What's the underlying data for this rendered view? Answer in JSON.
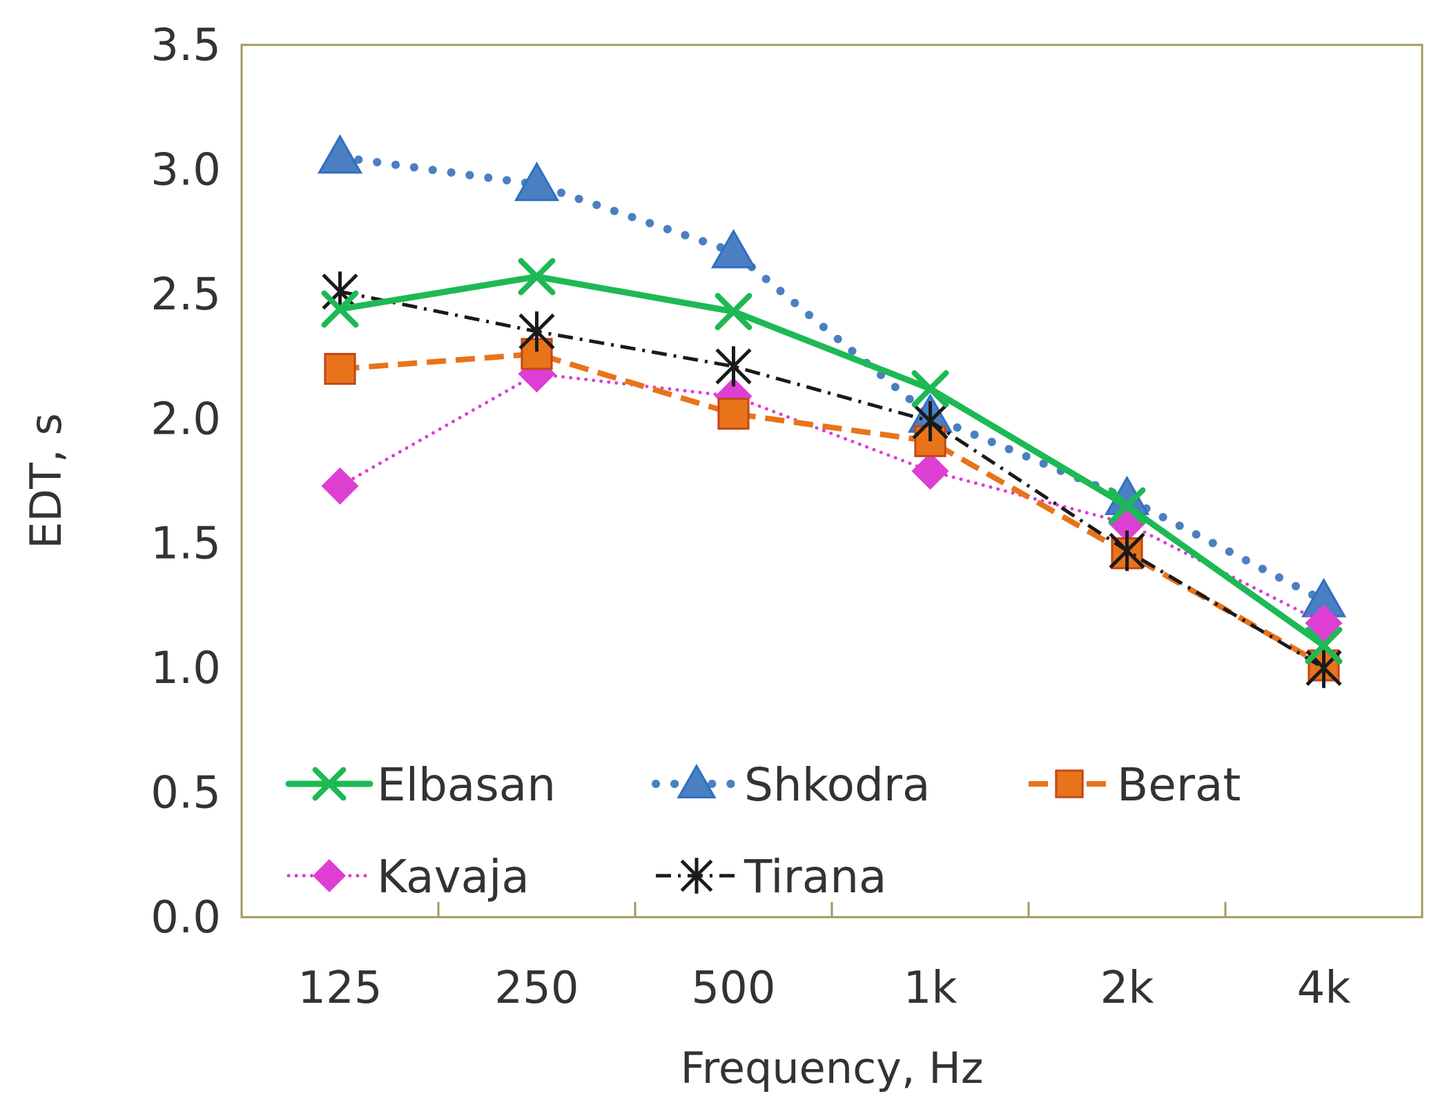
{
  "chart_data": {
    "type": "line",
    "title": "",
    "xlabel": "Frequency, Hz",
    "ylabel": "EDT, s",
    "categories": [
      "125",
      "250",
      "500",
      "1k",
      "2k",
      "4k"
    ],
    "yticks": [
      "0.0",
      "0.5",
      "1.0",
      "1.5",
      "2.0",
      "2.5",
      "3.0",
      "3.5"
    ],
    "ylim": [
      0,
      3.5
    ],
    "grid": false,
    "legend_position": "bottom-inside",
    "series": [
      {
        "name": "Elbasan",
        "values": [
          2.44,
          2.57,
          2.43,
          2.12,
          1.65,
          1.09
        ],
        "color": "#1db954",
        "marker": "x",
        "line": "solid"
      },
      {
        "name": "Shkodra",
        "values": [
          3.05,
          2.94,
          2.67,
          2.01,
          1.68,
          1.27
        ],
        "color": "#4a7fc1",
        "marker": "triangle",
        "line": "dotted"
      },
      {
        "name": "Berat",
        "values": [
          2.2,
          2.26,
          2.02,
          1.91,
          1.46,
          1.01
        ],
        "color": "#e8731a",
        "marker": "square",
        "line": "dashed"
      },
      {
        "name": "Kavaja",
        "values": [
          1.73,
          2.18,
          2.09,
          1.79,
          1.58,
          1.18
        ],
        "color": "#dd3fd3",
        "marker": "diamond",
        "line": "dotted"
      },
      {
        "name": "Tirana",
        "values": [
          2.51,
          2.35,
          2.21,
          1.99,
          1.47,
          1.0
        ],
        "color": "#1a1a1a",
        "marker": "asterisk",
        "line": "dashdot"
      }
    ]
  }
}
